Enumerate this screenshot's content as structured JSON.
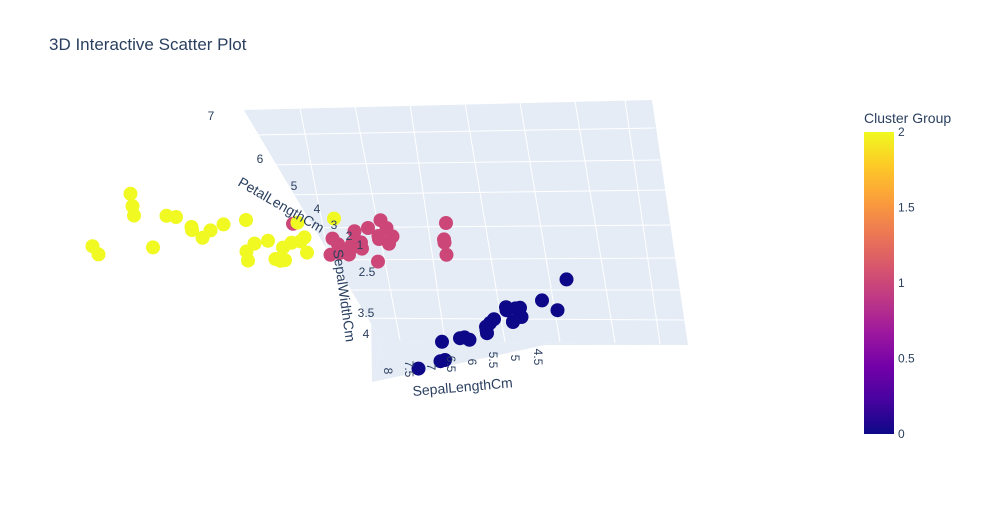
{
  "chart_data": {
    "type": "scatter",
    "title": "3D Interactive Scatter Plot",
    "axes": {
      "x": {
        "label": "SepalLengthCm",
        "ticks": [
          "4.5",
          "5",
          "5.5",
          "6",
          "6.5",
          "7",
          "7.5",
          "8"
        ]
      },
      "y": {
        "label": "SepalWidthCm",
        "ticks": [
          "2",
          "2.5",
          "3",
          "3.5",
          "4"
        ]
      },
      "z": {
        "label": "PetalLengthCm",
        "ticks": [
          "1",
          "2",
          "3",
          "4",
          "5",
          "6",
          "7"
        ]
      }
    },
    "colorbar": {
      "title": "Cluster Group",
      "range": [
        0,
        2
      ],
      "ticks": [
        "0",
        "0.5",
        "1",
        "1.5",
        "2"
      ],
      "colorscale": [
        "#0d0887",
        "#46039f",
        "#7201a8",
        "#9c179e",
        "#bd3786",
        "#d8576b",
        "#ed7953",
        "#fb9f3a",
        "#fdca26",
        "#f0f921"
      ]
    },
    "series": [
      {
        "cluster": 0,
        "color": "#0d0887",
        "points": [
          [
            5.1,
            3.5,
            1.4
          ],
          [
            4.9,
            3.0,
            1.4
          ],
          [
            4.7,
            3.2,
            1.3
          ],
          [
            4.6,
            3.1,
            1.5
          ],
          [
            5.0,
            3.6,
            1.4
          ],
          [
            5.4,
            3.9,
            1.7
          ],
          [
            4.6,
            3.4,
            1.4
          ],
          [
            5.0,
            3.4,
            1.5
          ],
          [
            4.4,
            2.9,
            1.4
          ],
          [
            4.9,
            3.1,
            1.5
          ],
          [
            5.4,
            3.7,
            1.5
          ],
          [
            4.8,
            3.4,
            1.6
          ],
          [
            4.3,
            3.0,
            1.1
          ],
          [
            5.8,
            4.0,
            1.2
          ],
          [
            5.7,
            4.4,
            1.5
          ],
          [
            5.1,
            3.8,
            1.5
          ],
          [
            5.2,
            3.4,
            1.4
          ],
          [
            4.8,
            3.1,
            1.6
          ],
          [
            5.5,
            4.2,
            1.4
          ],
          [
            5.0,
            3.2,
            1.2
          ],
          [
            4.5,
            2.3,
            1.3
          ],
          [
            5.3,
            3.7,
            1.5
          ]
        ]
      },
      {
        "cluster": 1,
        "color": "#cc4778",
        "points": [
          [
            5.5,
            2.3,
            4.0
          ],
          [
            5.7,
            2.8,
            4.5
          ],
          [
            4.9,
            2.4,
            3.3
          ],
          [
            5.2,
            2.7,
            3.9
          ],
          [
            5.0,
            2.0,
            3.5
          ],
          [
            5.9,
            3.0,
            4.2
          ],
          [
            6.0,
            2.2,
            4.0
          ],
          [
            5.6,
            2.9,
            3.6
          ],
          [
            5.8,
            2.7,
            4.1
          ],
          [
            5.6,
            2.5,
            3.9
          ],
          [
            5.5,
            2.4,
            3.8
          ],
          [
            5.8,
            2.7,
            3.9
          ],
          [
            6.0,
            2.7,
            5.1
          ],
          [
            5.4,
            3.0,
            4.5
          ],
          [
            5.6,
            3.0,
            4.1
          ],
          [
            5.5,
            2.5,
            4.0
          ],
          [
            5.5,
            2.6,
            4.4
          ],
          [
            5.8,
            2.6,
            4.0
          ],
          [
            5.0,
            2.3,
            3.3
          ],
          [
            5.6,
            2.7,
            4.2
          ],
          [
            5.7,
            3.0,
            4.2
          ],
          [
            5.7,
            2.9,
            4.2
          ],
          [
            5.1,
            2.5,
            3.0
          ],
          [
            5.7,
            2.8,
            4.1
          ],
          [
            4.9,
            2.5,
            4.5
          ],
          [
            6.1,
            2.8,
            4.0
          ]
        ]
      },
      {
        "cluster": 2,
        "color": "#f0f921",
        "points": [
          [
            7.0,
            3.2,
            4.7
          ],
          [
            6.4,
            3.2,
            4.5
          ],
          [
            6.9,
            3.1,
            4.9
          ],
          [
            6.5,
            2.8,
            4.6
          ],
          [
            6.3,
            3.3,
            4.7
          ],
          [
            6.6,
            2.9,
            4.6
          ],
          [
            6.1,
            2.9,
            4.7
          ],
          [
            6.7,
            3.1,
            4.4
          ],
          [
            6.2,
            2.2,
            4.5
          ],
          [
            6.3,
            2.5,
            4.9
          ],
          [
            6.1,
            2.8,
            4.7
          ],
          [
            6.4,
            2.9,
            4.3
          ],
          [
            6.8,
            2.8,
            4.8
          ],
          [
            6.7,
            3.0,
            5.0
          ],
          [
            6.3,
            3.3,
            6.0
          ],
          [
            7.1,
            3.0,
            5.9
          ],
          [
            6.5,
            3.0,
            5.8
          ],
          [
            7.6,
            3.0,
            6.6
          ],
          [
            7.3,
            2.9,
            6.3
          ],
          [
            7.2,
            3.6,
            6.1
          ],
          [
            7.7,
            3.8,
            6.7
          ],
          [
            7.7,
            2.6,
            6.9
          ],
          [
            6.9,
            3.2,
            5.7
          ],
          [
            7.7,
            2.8,
            6.7
          ],
          [
            7.9,
            3.8,
            6.4
          ],
          [
            6.4,
            2.8,
            5.6
          ],
          [
            7.2,
            3.0,
            5.8
          ],
          [
            7.4,
            2.8,
            6.1
          ]
        ]
      }
    ]
  }
}
